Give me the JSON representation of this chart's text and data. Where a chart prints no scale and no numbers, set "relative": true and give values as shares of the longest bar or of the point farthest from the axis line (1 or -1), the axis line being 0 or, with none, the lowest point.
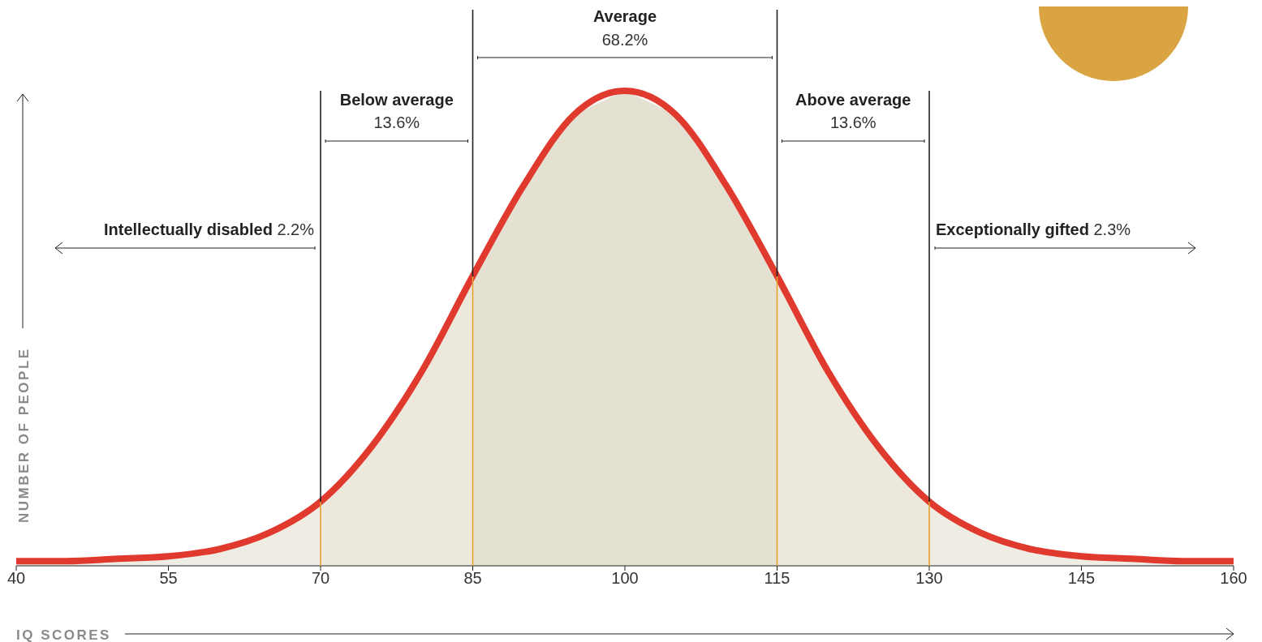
{
  "chart_data": {
    "type": "area",
    "relative": true,
    "xlabel": "IQ SCORES",
    "ylabel": "NUMBER OF PEOPLE",
    "x": [
      40,
      45,
      50,
      55,
      60,
      65,
      70,
      75,
      80,
      85,
      90,
      95,
      100,
      105,
      110,
      115,
      120,
      125,
      130,
      135,
      140,
      145,
      150,
      155,
      160
    ],
    "xlim": [
      40,
      160
    ],
    "xticks": [
      40,
      55,
      70,
      85,
      100,
      115,
      130,
      145,
      160
    ],
    "series": [
      {
        "color": "#e0392e",
        "values": [
          0.01,
          0.01,
          0.015,
          0.02,
          0.035,
          0.07,
          0.135,
          0.25,
          0.41,
          0.61,
          0.8,
          0.95,
          1,
          0.95,
          0.8,
          0.61,
          0.41,
          0.25,
          0.135,
          0.07,
          0.035,
          0.02,
          0.015,
          0.01,
          0.01
        ]
      }
    ],
    "bands": [
      {
        "axis": "x",
        "from": 40,
        "to": 70,
        "label": "Intellectually disabled 2.2%",
        "color": "#f3f1ea"
      },
      {
        "axis": "x",
        "from": 70,
        "to": 85,
        "label": "Below average 13.6%",
        "color": "#efece2"
      },
      {
        "axis": "x",
        "from": 85,
        "to": 115,
        "label": "Average 68.2%",
        "color": "#e7e4d6"
      },
      {
        "axis": "x",
        "from": 115,
        "to": 130,
        "label": "Above average 13.6%",
        "color": "#efece2"
      },
      {
        "axis": "x",
        "from": 130,
        "to": 160,
        "label": "Exceptionally gifted 2.3%",
        "color": "#f3f1ea"
      }
    ],
    "ref_lines": [
      {
        "axis": "x",
        "value": 70,
        "color": "#222222"
      },
      {
        "axis": "x",
        "value": 85,
        "color": "#222222"
      },
      {
        "axis": "x",
        "value": 115,
        "color": "#222222"
      },
      {
        "axis": "x",
        "value": 130,
        "color": "#222222"
      }
    ]
  }
}
